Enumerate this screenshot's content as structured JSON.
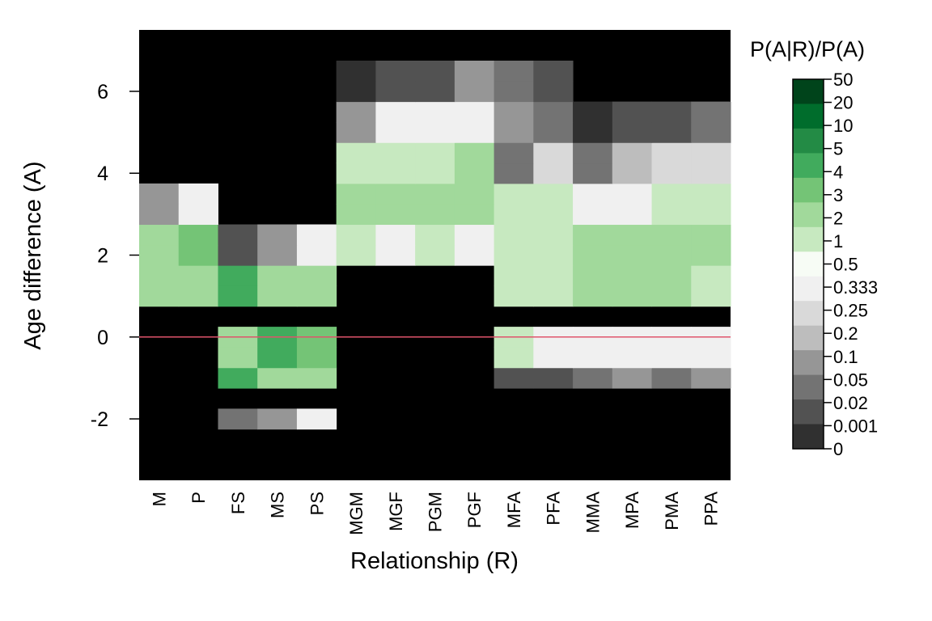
{
  "chart_data": {
    "type": "heatmap",
    "title": "",
    "xlabel": "Relationship (R)",
    "ylabel": "Age difference (A)",
    "x_categories": [
      "M",
      "P",
      "FS",
      "MS",
      "PS",
      "MGM",
      "MGF",
      "PGM",
      "PGF",
      "MFA",
      "PFA",
      "MMA",
      "MPA",
      "PMA",
      "PPA"
    ],
    "y_bins_center": [
      -3,
      -2.5,
      -2,
      -1.5,
      -1,
      -0.5,
      0,
      0.5,
      1,
      1.5,
      2,
      2.5,
      3,
      3.5,
      4,
      4.5,
      5,
      5.5,
      6,
      6.5,
      7
    ],
    "ylim": [
      -3.5,
      7.5
    ],
    "y_ticks": [
      -2,
      0,
      2,
      4,
      6
    ],
    "y_tick_labels": [
      "-2",
      "0",
      "2",
      "4",
      "6"
    ],
    "reference_line": {
      "y": 0,
      "color": "#DF536B"
    },
    "background_color": "#000000",
    "color_scale": {
      "title": "P(A|R)/P(A)",
      "tick_labels": [
        "50",
        "20",
        "10",
        "5",
        "4",
        "3",
        "2",
        "1",
        "0.5",
        "0.333",
        "0.25",
        "0.2",
        "0.1",
        "0.05",
        "0.02",
        "0.001",
        "0"
      ],
      "colors_top_to_bottom": [
        "#00441b",
        "#006d2c",
        "#238b45",
        "#41ab5d",
        "#74c476",
        "#a1d99b",
        "#c7e9c0",
        "#f7fcf5",
        "#f0f0f0",
        "#d9d9d9",
        "#bdbdbd",
        "#969696",
        "#737373",
        "#525252",
        "#303030"
      ]
    },
    "series_values_rows_bottom_to_top": [
      [
        0,
        0,
        0,
        0,
        0,
        0,
        0,
        0,
        0,
        0,
        0,
        0,
        0,
        0,
        0
      ],
      [
        0,
        0,
        0,
        0,
        0,
        0,
        0,
        0,
        0,
        0,
        0,
        0,
        0,
        0,
        0
      ],
      [
        0,
        0,
        0.06,
        0.2,
        0.4,
        0,
        0,
        0,
        0,
        0,
        0,
        0,
        0,
        0,
        0
      ],
      [
        0,
        0,
        0,
        0,
        0,
        0,
        0,
        0,
        0,
        0,
        0,
        0,
        0,
        0,
        0
      ],
      [
        0,
        0,
        4.5,
        3,
        3,
        0,
        0,
        0,
        0,
        0.04,
        0.04,
        0.08,
        0.2,
        0.08,
        0.2
      ],
      [
        0,
        0,
        2.5,
        5,
        4,
        0,
        0,
        0,
        0,
        1.2,
        0.4,
        0.4,
        0.4,
        0.4,
        0.4
      ],
      [
        0,
        0,
        2.5,
        5,
        4,
        0,
        0,
        0,
        0,
        1.2,
        0.4,
        0.4,
        0.4,
        0.4,
        0.4
      ],
      [
        0,
        0,
        0,
        0,
        0,
        0,
        0,
        0,
        0,
        0,
        0,
        0,
        0,
        0,
        0
      ],
      [
        3,
        2.2,
        4.5,
        3,
        3,
        0,
        0,
        0,
        0,
        2,
        2,
        2.5,
        2.2,
        2.2,
        1.8
      ],
      [
        3,
        2.2,
        4.5,
        3,
        3,
        0,
        0,
        0,
        0,
        2,
        2,
        2.5,
        2.2,
        2.2,
        1.8
      ],
      [
        3,
        3.5,
        0.05,
        0.2,
        0.4,
        1.8,
        0.4,
        1.1,
        0.4,
        2,
        2,
        2.2,
        2.2,
        2.5,
        2.2
      ],
      [
        3,
        3.5,
        0.05,
        0.2,
        0.4,
        1.8,
        0.4,
        1.1,
        0.4,
        2,
        2,
        2.2,
        2.2,
        2.5,
        2.2
      ],
      [
        0.2,
        0.4,
        0,
        0,
        0,
        3,
        2.8,
        2.8,
        2.2,
        1.3,
        1.5,
        0.4,
        0.4,
        1.5,
        1.5
      ],
      [
        0.2,
        0.4,
        0,
        0,
        0,
        3,
        2.8,
        2.8,
        2.2,
        1.3,
        1.5,
        0.4,
        0.4,
        1.5,
        1.5
      ],
      [
        0,
        0,
        0,
        0,
        0,
        1.3,
        2,
        2,
        2.5,
        0.08,
        0.333,
        0.1,
        0.25,
        0.3,
        0.333
      ],
      [
        0,
        0,
        0,
        0,
        0,
        1.3,
        2,
        2,
        2.5,
        0.08,
        0.333,
        0.1,
        0.25,
        0.3,
        0.333
      ],
      [
        0,
        0,
        0,
        0,
        0,
        0.2,
        0.4,
        0.4,
        0.5,
        0.2,
        0.1,
        0.02,
        0.03,
        0.03,
        0.06
      ],
      [
        0,
        0,
        0,
        0,
        0,
        0.2,
        0.4,
        0.4,
        0.5,
        0.2,
        0.1,
        0.02,
        0.03,
        0.03,
        0.06
      ],
      [
        0,
        0,
        0,
        0,
        0,
        0.02,
        0.05,
        0.04,
        0.2,
        0.06,
        0.05,
        0,
        0,
        0,
        0
      ],
      [
        0,
        0,
        0,
        0,
        0,
        0.02,
        0.05,
        0.04,
        0.2,
        0.06,
        0.05,
        0,
        0,
        0,
        0
      ],
      [
        0,
        0,
        0,
        0,
        0,
        0,
        0,
        0,
        0,
        0,
        0,
        0,
        0,
        0,
        0
      ]
    ]
  }
}
